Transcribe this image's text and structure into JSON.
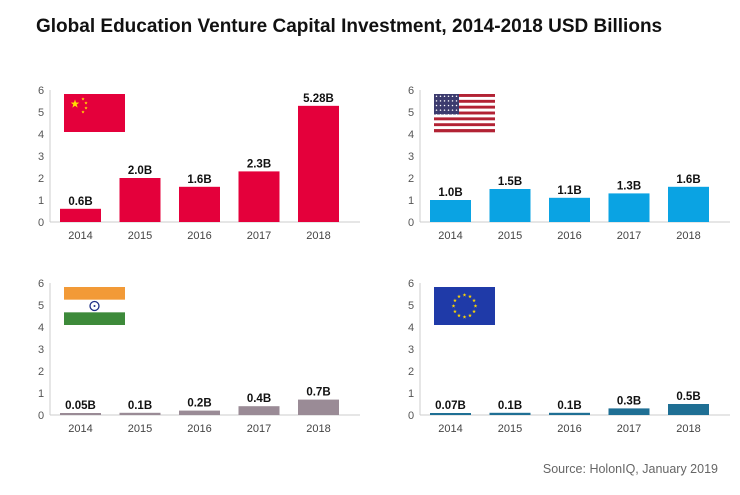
{
  "title": "Global Education Venture Capital Investment, 2014-2018 USD Billions",
  "source": "Source: HolonIQ,  January 2019",
  "chart_data": [
    {
      "type": "bar",
      "region": "China",
      "flag": "china-flag",
      "color": "#e4003b",
      "categories": [
        "2014",
        "2015",
        "2016",
        "2017",
        "2018"
      ],
      "values": [
        0.6,
        2.0,
        1.6,
        2.3,
        5.28
      ],
      "labels": [
        "0.6B",
        "2.0B",
        "1.6B",
        "2.3B",
        "5.28B"
      ],
      "yticks": [
        "0",
        "1",
        "2",
        "3",
        "4",
        "5",
        "6"
      ],
      "ylim": [
        0,
        6
      ]
    },
    {
      "type": "bar",
      "region": "United States",
      "flag": "usa-flag",
      "color": "#0aa3e3",
      "categories": [
        "2014",
        "2015",
        "2016",
        "2017",
        "2018"
      ],
      "values": [
        1.0,
        1.5,
        1.1,
        1.3,
        1.6
      ],
      "labels": [
        "1.0B",
        "1.5B",
        "1.1B",
        "1.3B",
        "1.6B"
      ],
      "yticks": [
        "0",
        "1",
        "2",
        "3",
        "4",
        "5",
        "6"
      ],
      "ylim": [
        0,
        6
      ]
    },
    {
      "type": "bar",
      "region": "India",
      "flag": "india-flag",
      "color": "#9a8b96",
      "categories": [
        "2014",
        "2015",
        "2016",
        "2017",
        "2018"
      ],
      "values": [
        0.05,
        0.1,
        0.2,
        0.4,
        0.7
      ],
      "labels": [
        "0.05B",
        "0.1B",
        "0.2B",
        "0.4B",
        "0.7B"
      ],
      "yticks": [
        "0",
        "1",
        "2",
        "3",
        "4",
        "5",
        "6"
      ],
      "ylim": [
        0,
        6
      ]
    },
    {
      "type": "bar",
      "region": "European Union",
      "flag": "eu-flag",
      "color": "#1f6f94",
      "categories": [
        "2014",
        "2015",
        "2016",
        "2017",
        "2018"
      ],
      "values": [
        0.07,
        0.1,
        0.1,
        0.3,
        0.5
      ],
      "labels": [
        "0.07B",
        "0.1B",
        "0.1B",
        "0.3B",
        "0.5B"
      ],
      "yticks": [
        "0",
        "1",
        "2",
        "3",
        "4",
        "5",
        "6"
      ],
      "ylim": [
        0,
        6
      ]
    }
  ]
}
